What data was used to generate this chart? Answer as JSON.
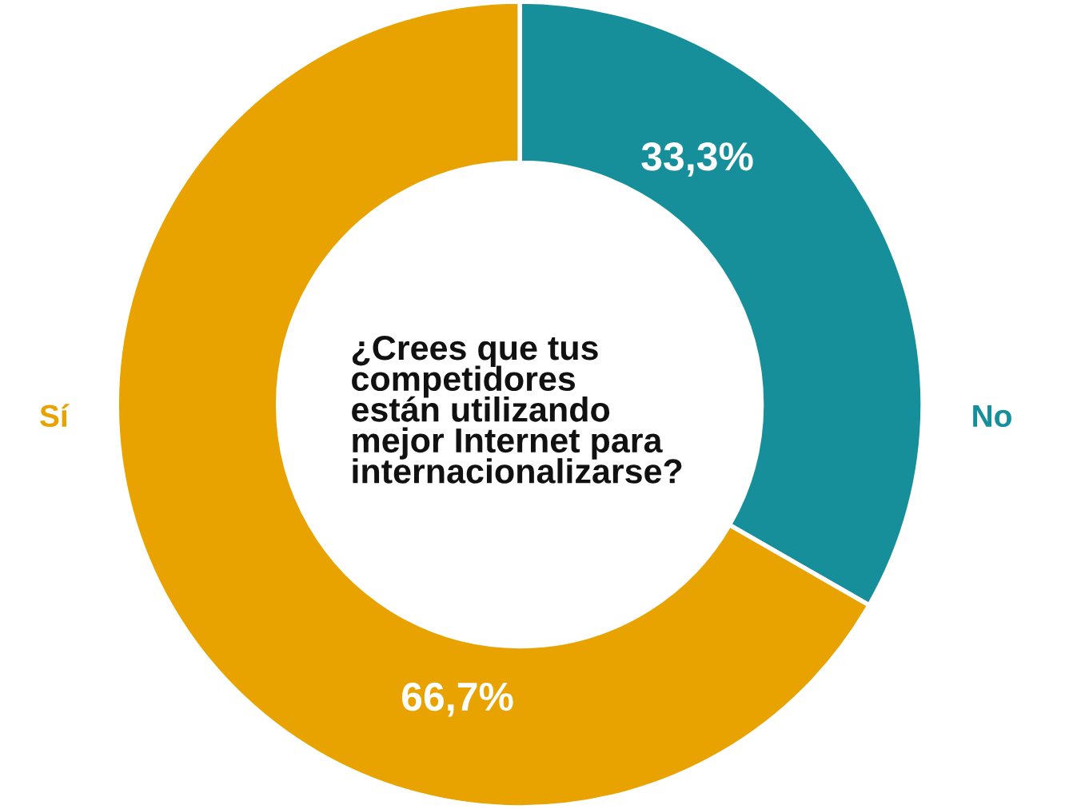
{
  "chart_data": {
    "type": "donut",
    "title": "¿Crees que tus\ncompetidores\nestán utilizando\nmejor Internet para\ninternacionalizarse?",
    "categories": [
      "No",
      "Sí"
    ],
    "values": [
      33.3,
      66.7
    ],
    "value_labels": [
      "33,3%",
      "66,7%"
    ],
    "colors": [
      "#178f9b",
      "#e8a300"
    ]
  }
}
